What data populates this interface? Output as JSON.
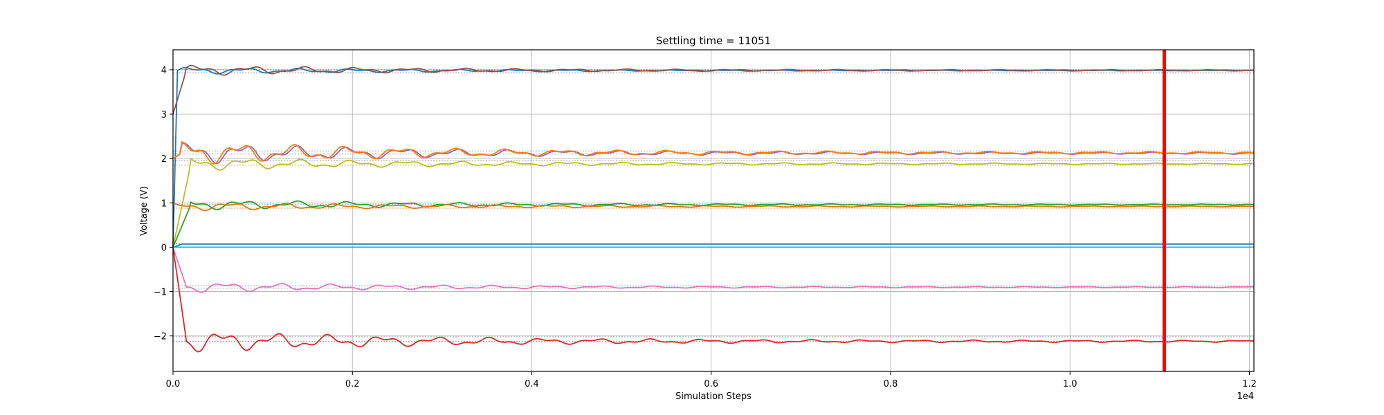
{
  "chart_data": {
    "type": "line",
    "title": "Settling time = 11051",
    "xlabel": "Simulation Steps",
    "ylabel": "Voltage (V)",
    "x_offset_text": "1e4",
    "xlim": [
      0,
      12050
    ],
    "ylim": [
      -2.8,
      4.45
    ],
    "grid": true,
    "x_ticks": [
      0,
      2000,
      4000,
      6000,
      8000,
      10000,
      12000
    ],
    "x_tick_labels": [
      "0.0",
      "0.2",
      "0.4",
      "0.6",
      "0.8",
      "1.0",
      "1.2"
    ],
    "y_ticks": [
      -2,
      -1,
      0,
      1,
      2,
      3,
      4
    ],
    "y_tick_labels": [
      "−2",
      "−1",
      "0",
      "1",
      "2",
      "3",
      "4"
    ],
    "settling_marker": {
      "x": 11051,
      "color": "#ff0000"
    },
    "reference_lines": [
      {
        "y": 3.93,
        "color": "#777777"
      },
      {
        "y": 4.0,
        "color": "#777777"
      },
      {
        "y": 2.17,
        "color": "#999999"
      },
      {
        "y": 2.1,
        "color": "#999999"
      },
      {
        "y": 1.95,
        "color": "#999999"
      },
      {
        "y": 1.85,
        "color": "#bcbd22"
      },
      {
        "y": 0.97,
        "color": "#999999"
      },
      {
        "y": 0.88,
        "color": "#ff7f0e"
      },
      {
        "y": 0.08,
        "color": "#1f77b4"
      },
      {
        "y": 0.0,
        "color": "#17becf"
      },
      {
        "y": -0.87,
        "color": "#999999"
      },
      {
        "y": -0.92,
        "color": "#999999"
      },
      {
        "y": -2.02,
        "color": "#999999"
      },
      {
        "y": -2.12,
        "color": "#999999"
      }
    ],
    "series": [
      {
        "color": "#1f77b4",
        "base": 3.98,
        "start": 0,
        "amp": 0.08,
        "rise": 50
      },
      {
        "color": "#8c564b",
        "base": 3.99,
        "start": 3.0,
        "amp": 0.12,
        "rise": 150
      },
      {
        "color": "#9467bd",
        "base": 2.12,
        "start": 2.0,
        "amp": 0.25,
        "rise": 100
      },
      {
        "color": "#ff7f0e",
        "base": 2.13,
        "start": 2.0,
        "amp": 0.27,
        "rise": 100
      },
      {
        "color": "#bcbd22",
        "base": 1.88,
        "start": 0.0,
        "amp": 0.15,
        "rise": 200
      },
      {
        "color": "#2ca02c",
        "base": 0.96,
        "start": 0.0,
        "amp": 0.12,
        "rise": 200
      },
      {
        "color": "#d67b1a",
        "base": 0.92,
        "start": 1.0,
        "amp": 0.1,
        "rise": 100
      },
      {
        "color": "#1f77b4",
        "base": 0.07,
        "start": 0.0,
        "amp": 0.0,
        "rise": 100
      },
      {
        "color": "#17becf",
        "base": 0.0,
        "start": 0.0,
        "amp": 0.0,
        "rise": 100
      },
      {
        "color": "#e377c2",
        "base": -0.9,
        "start": 0.0,
        "amp": 0.12,
        "rise": 150
      },
      {
        "color": "#d62728",
        "base": -2.12,
        "start": 0.0,
        "amp": 0.25,
        "rise": 150
      }
    ]
  }
}
